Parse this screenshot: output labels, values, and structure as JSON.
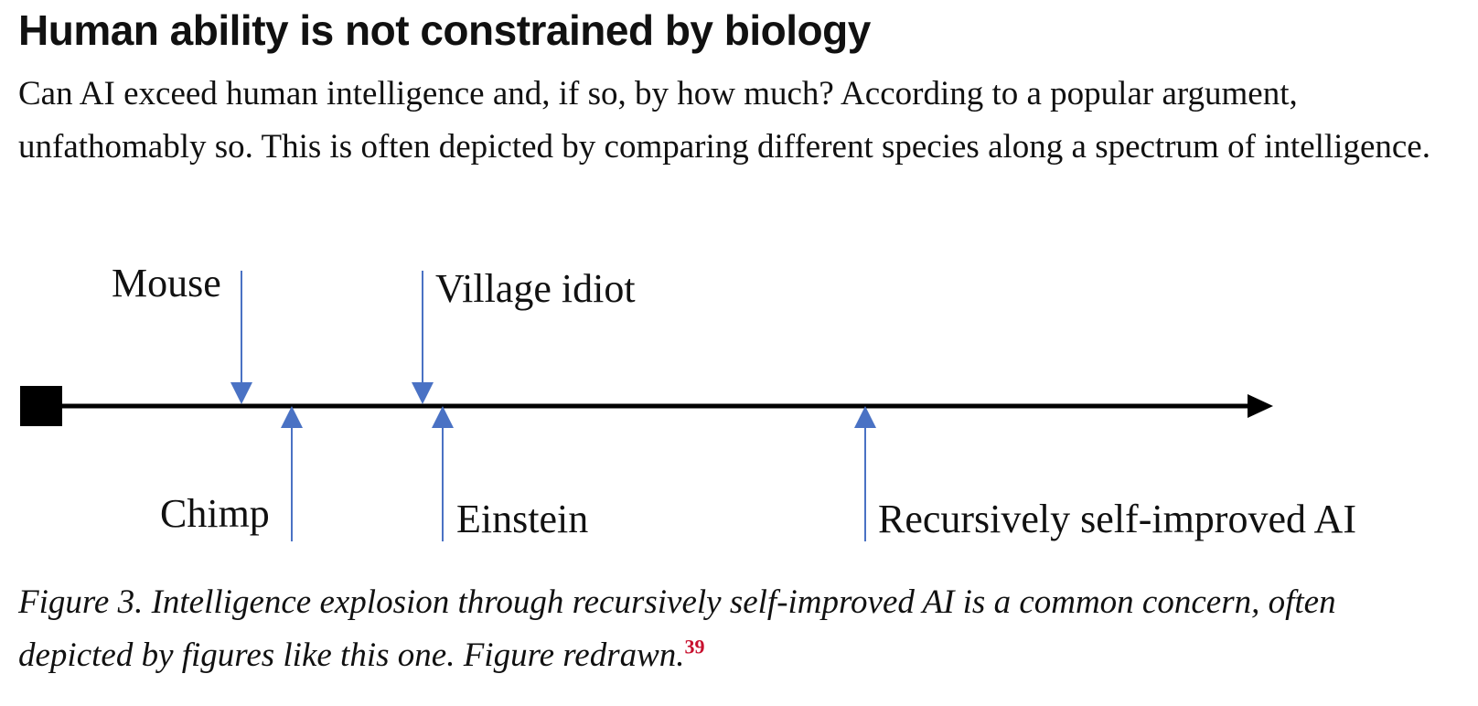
{
  "heading": "Human ability is not constrained by biology",
  "body": "Can AI exceed human intelligence and, if so, by how much? According to a popular argument, unfathomably so. This is often depicted by comparing different species along a spectrum of intelligence.",
  "figure": {
    "labels": {
      "mouse": "Mouse",
      "village_idiot": "Village idiot",
      "chimp": "Chimp",
      "einstein": "Einstein",
      "ai": "Recursively self-improved AI"
    },
    "colors": {
      "arrow": "#4a72c4",
      "axis": "#000000"
    }
  },
  "caption": {
    "text": "Figure 3. Intelligence explosion through recursively self-improved AI is a common concern, often depicted by figures like this one. Figure redrawn.",
    "footnote": "39",
    "footnote_color": "#c8102e"
  }
}
